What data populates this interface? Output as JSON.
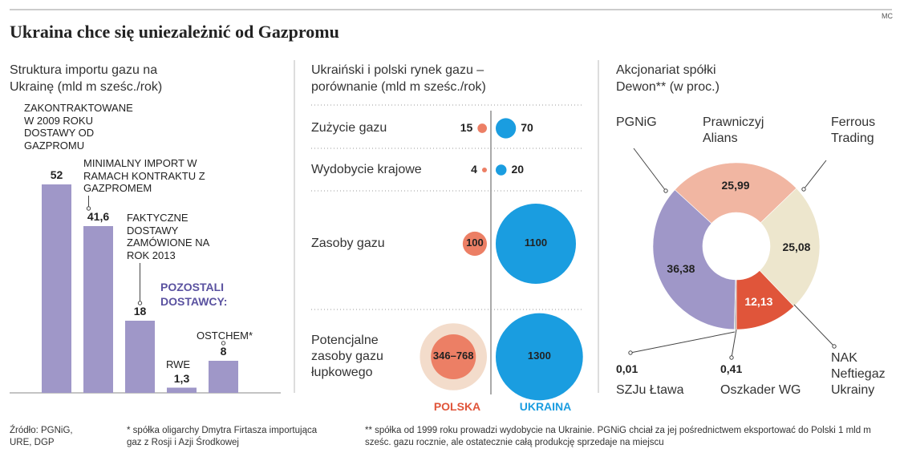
{
  "header": {
    "title": "Ukraina chce się uniezależnić od Gazpromu",
    "credit": "MC"
  },
  "chart_data": [
    {
      "type": "bar",
      "title": "Struktura importu gazu na Ukrainę (mld m sześc./rok)",
      "categories": [
        "ZAKONTRAKTOWANE W 2009 ROKU DOSTAWY OD GAZPROMU",
        "MINIMALNY IMPORT W RAMACH KONTRAKTU Z GAZPROMEM",
        "FAKTYCZNE DOSTAWY ZAMÓWIONE NA ROK 2013",
        "RWE",
        "OSTCHEM*"
      ],
      "values": [
        52,
        41.6,
        18,
        1.3,
        8
      ],
      "value_labels": [
        "52",
        "41,6",
        "18",
        "1,3",
        "8"
      ],
      "color": "#9f97c8",
      "annotation": "POZOSTALI DOSTAWCY:"
    },
    {
      "type": "bubble",
      "title": "Ukraiński i polski rynek gazu – porównanie (mld m sześc./rok)",
      "categories": [
        "Zużycie gazu",
        "Wydobycie krajowe",
        "Zasoby gazu",
        "Potencjalne zasoby gazu łupkowego"
      ],
      "series": [
        {
          "name": "POLSKA",
          "color": "#ec7f65",
          "range_color": "#f3dccb",
          "label_color": "#e0553a",
          "values": [
            15,
            4,
            100,
            [
              346,
              768
            ]
          ],
          "value_labels": [
            "15",
            "4",
            "100",
            "346–768"
          ]
        },
        {
          "name": "UKRAINA",
          "color": "#1a9de0",
          "label_color": "#1a9de0",
          "values": [
            70,
            20,
            1100,
            1300
          ],
          "value_labels": [
            "70",
            "20",
            "1100",
            "1300"
          ]
        }
      ]
    },
    {
      "type": "pie",
      "donut": true,
      "title": "Akcjonariat spółki Dewon** (w proc.)",
      "categories": [
        "Prawniczyj Alians",
        "Ferrous Trading",
        "NAK Neftiegaz Ukrainy",
        "Oszkader WG",
        "SZJu Łtawa",
        "PGNiG"
      ],
      "values": [
        25.99,
        25.08,
        12.13,
        0.41,
        0.01,
        36.38
      ],
      "value_labels": [
        "25,99",
        "25,08",
        "12,13",
        "0,41",
        "0,01",
        "36,38"
      ],
      "colors": [
        "#f1b6a2",
        "#ede6cd",
        "#e0553a",
        "#b9b9b9",
        "#9a9a9a",
        "#9f97c8"
      ]
    }
  ],
  "footer": {
    "source": "Źródło: PGNiG, URE, DGP",
    "notes": [
      "* spółka oligarchy Dmytra Firtasza importująca gaz z Rosji i Azji Środkowej",
      "** spółka od 1999 roku prowadzi wydobycie na Ukrainie. PGNiG chciał za jej pośrednictwem eksportować do Polski 1 mld m sześc. gazu rocznie, ale ostatecznie całą produkcję sprzedaje na miejscu"
    ]
  }
}
